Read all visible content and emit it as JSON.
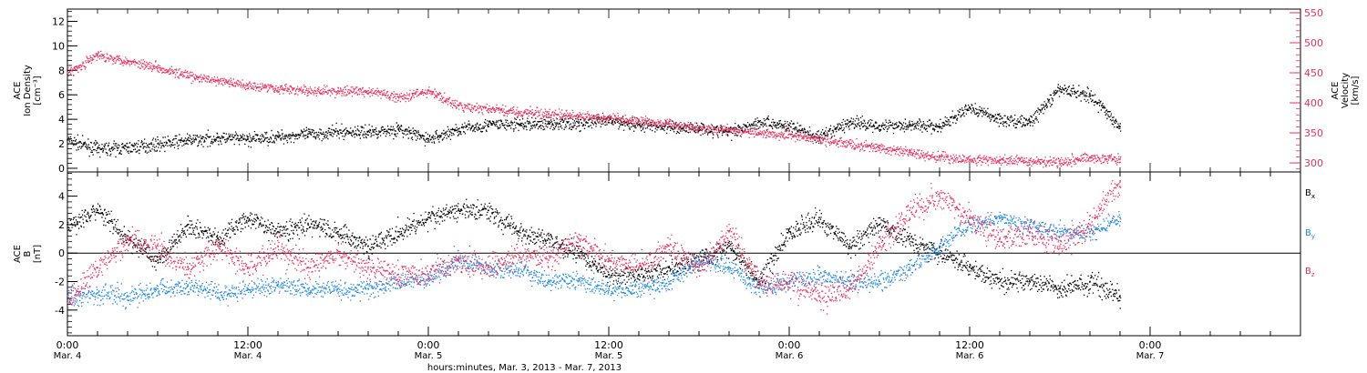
{
  "chart_data": [
    {
      "type": "scatter",
      "panel": "ion-density-velocity",
      "ylabel_lines": [
        "ACE",
        "Ion Density",
        "[cm⁻³]"
      ],
      "y_ticks": [
        0,
        2,
        4,
        6,
        8,
        10,
        12
      ],
      "ylim": [
        -0.3,
        13
      ],
      "y2label_lines": [
        "ACE",
        "Velocity",
        "[km/s]"
      ],
      "y2_ticks": [
        300,
        350,
        400,
        450,
        500,
        550
      ],
      "y2lim": [
        285,
        556
      ],
      "y2_color": "#e8315f",
      "series": [
        {
          "color": "#000000",
          "axis": "left",
          "x": [
            0,
            2,
            4,
            6,
            8,
            10,
            12,
            14,
            16,
            18,
            20,
            22,
            24,
            26,
            28,
            30,
            32,
            34,
            36,
            38,
            40,
            42,
            44,
            46,
            48,
            50,
            52,
            54,
            56,
            58,
            60,
            62,
            64,
            66,
            68,
            70
          ],
          "y": [
            2.3,
            1.6,
            1.7,
            2.0,
            2.3,
            2.5,
            2.4,
            2.6,
            2.8,
            3.0,
            3.0,
            3.2,
            2.4,
            3.2,
            3.6,
            3.6,
            3.7,
            3.7,
            3.9,
            3.6,
            3.4,
            3.3,
            3.0,
            3.8,
            3.5,
            2.5,
            3.8,
            3.5,
            3.6,
            3.4,
            5.0,
            4.0,
            3.8,
            6.5,
            6.0,
            3.4
          ]
        },
        {
          "color": "#e8315f",
          "axis": "right",
          "x": [
            0,
            2,
            4,
            6,
            8,
            10,
            12,
            14,
            16,
            18,
            20,
            22,
            24,
            26,
            28,
            30,
            32,
            34,
            36,
            38,
            40,
            42,
            44,
            46,
            48,
            50,
            52,
            54,
            56,
            58,
            60,
            62,
            64,
            66,
            68,
            70
          ],
          "y": [
            450,
            480,
            470,
            460,
            445,
            437,
            430,
            425,
            420,
            420,
            420,
            410,
            420,
            395,
            390,
            385,
            382,
            378,
            375,
            370,
            365,
            360,
            355,
            350,
            348,
            340,
            332,
            325,
            318,
            310,
            306,
            305,
            304,
            303,
            310,
            306
          ]
        }
      ]
    },
    {
      "type": "scatter",
      "panel": "magnetic-field",
      "ylabel_lines": [
        "ACE",
        "B",
        "[nT]"
      ],
      "y_ticks": [
        -4,
        -2,
        0,
        2,
        4
      ],
      "ylim": [
        -5.8,
        5.7
      ],
      "zero_line": true,
      "legend_placement": "right",
      "series": [
        {
          "name": "Bx",
          "color": "#000000",
          "x": [
            0,
            2,
            4,
            6,
            8,
            10,
            12,
            14,
            16,
            18,
            20,
            22,
            24,
            26,
            28,
            30,
            32,
            34,
            36,
            38,
            40,
            42,
            44,
            46,
            48,
            50,
            52,
            54,
            56,
            58,
            60,
            62,
            64,
            66,
            68,
            70
          ],
          "y": [
            2.0,
            3.0,
            1.0,
            -0.5,
            2.0,
            1.0,
            2.5,
            1.5,
            2.0,
            1.5,
            0.5,
            1.5,
            2.5,
            3.0,
            3.0,
            1.5,
            1.0,
            0.0,
            -1.5,
            -1.5,
            -1.0,
            -0.5,
            0.5,
            -2.0,
            1.5,
            2.5,
            0.5,
            2.0,
            1.0,
            0.0,
            -1.0,
            -2.0,
            -2.0,
            -2.5,
            -2.0,
            -3.0
          ]
        },
        {
          "name": "By",
          "color": "#1f86e0",
          "x": [
            0,
            2,
            4,
            6,
            8,
            10,
            12,
            14,
            16,
            18,
            20,
            22,
            24,
            26,
            28,
            30,
            32,
            34,
            36,
            38,
            40,
            42,
            44,
            46,
            48,
            50,
            52,
            54,
            56,
            58,
            60,
            62,
            64,
            66,
            68,
            70
          ],
          "y": [
            -3.0,
            -2.8,
            -3.0,
            -2.5,
            -2.3,
            -2.8,
            -2.5,
            -2.2,
            -2.5,
            -2.5,
            -2.5,
            -2.0,
            -1.8,
            -0.5,
            -1.0,
            -1.2,
            -2.0,
            -1.8,
            -2.5,
            -2.5,
            -2.0,
            -0.5,
            -1.0,
            -2.5,
            -2.0,
            -1.5,
            -2.0,
            -2.0,
            -1.0,
            0.5,
            2.0,
            2.5,
            2.0,
            1.5,
            1.5,
            2.5
          ]
        },
        {
          "name": "Bz",
          "color": "#e8315f",
          "x": [
            0,
            2,
            4,
            6,
            8,
            10,
            12,
            14,
            16,
            18,
            20,
            22,
            24,
            26,
            28,
            30,
            32,
            34,
            36,
            38,
            40,
            42,
            44,
            46,
            48,
            50,
            52,
            54,
            56,
            58,
            60,
            62,
            64,
            66,
            68,
            70
          ],
          "y": [
            -3.5,
            -1.0,
            1.0,
            0.5,
            -1.0,
            0.5,
            -1.0,
            0.5,
            -1.0,
            0.0,
            -1.0,
            -1.5,
            -1.5,
            -0.5,
            -1.0,
            0.0,
            -0.5,
            1.0,
            -0.5,
            -1.0,
            0.5,
            -1.0,
            1.5,
            -2.0,
            -2.0,
            -3.0,
            -2.5,
            0.5,
            3.0,
            4.0,
            2.5,
            1.0,
            1.5,
            0.5,
            2.0,
            5.0
          ]
        }
      ]
    }
  ],
  "x_axis": {
    "xlim": [
      0,
      82
    ],
    "ticks": [
      {
        "x": 0,
        "time": "0:00",
        "date": "Mar. 4"
      },
      {
        "x": 12,
        "time": "12:00",
        "date": "Mar. 4"
      },
      {
        "x": 24,
        "time": "0:00",
        "date": "Mar. 5"
      },
      {
        "x": 36,
        "time": "12:00",
        "date": "Mar. 5"
      },
      {
        "x": 48,
        "time": "0:00",
        "date": "Mar. 6"
      },
      {
        "x": 60,
        "time": "12:00",
        "date": "Mar. 6"
      },
      {
        "x": 72,
        "time": "0:00",
        "date": "Mar. 7"
      }
    ],
    "label": "hours:minutes, Mar. 3, 2013 - Mar. 7, 2013"
  },
  "legend": [
    {
      "main": "B",
      "sub": "x",
      "color": "#000000"
    },
    {
      "main": "B",
      "sub": "y",
      "color": "#1f86e0"
    },
    {
      "main": "B",
      "sub": "z",
      "color": "#e8315f"
    }
  ]
}
